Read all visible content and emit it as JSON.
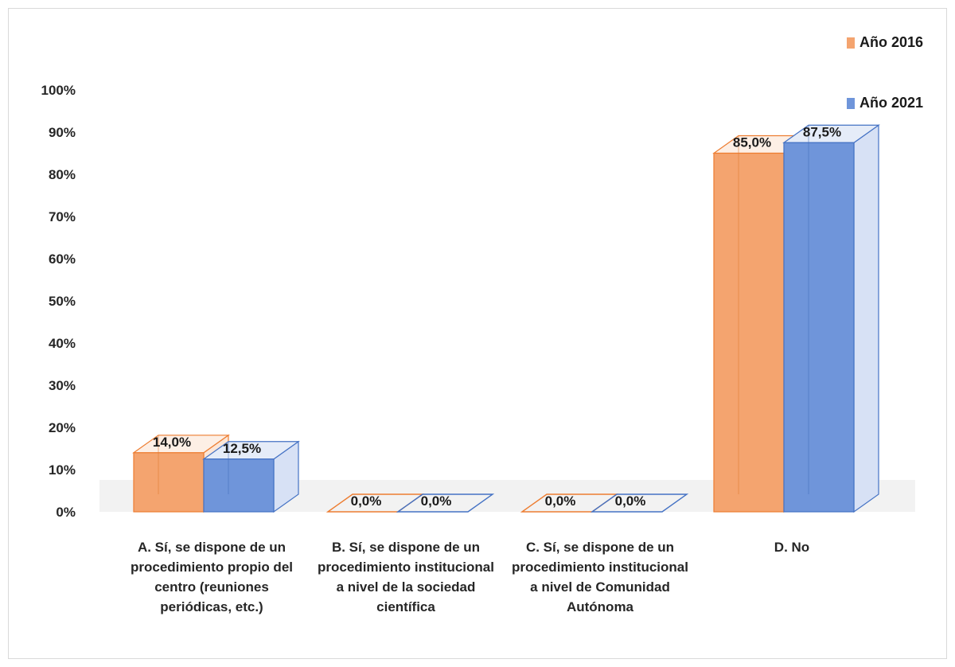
{
  "chart_data": {
    "type": "bar",
    "categories": [
      "A. Sí, se dispone de un procedimiento propio del centro (reuniones periódicas, etc.)",
      "B. Sí, se dispone de un procedimiento institucional a nivel de la sociedad científica",
      "C. Sí, se dispone de un procedimiento institucional a nivel de Comunidad Autónoma",
      "D. No"
    ],
    "series": [
      {
        "name": "Año 2016",
        "values": [
          14.0,
          0.0,
          0.0,
          85.0
        ],
        "labels": [
          "14,0%",
          "0,0%",
          "0,0%",
          "85,0%"
        ],
        "color": "#f4a46f"
      },
      {
        "name": "Año 2021",
        "values": [
          12.5,
          0.0,
          0.0,
          87.5
        ],
        "labels": [
          "12,5%",
          "0,0%",
          "0,0%",
          "87,5%"
        ],
        "color": "#6f95da"
      }
    ],
    "yticks": [
      "0%",
      "10%",
      "20%",
      "30%",
      "40%",
      "50%",
      "60%",
      "70%",
      "80%",
      "90%",
      "100%"
    ],
    "ylim": [
      0,
      100
    ],
    "legend_position": "top-right",
    "style": "3d-clustered-column",
    "grid": false
  },
  "colors": {
    "orange_edge": "#ed7d31",
    "blue_edge": "#4472c4"
  }
}
